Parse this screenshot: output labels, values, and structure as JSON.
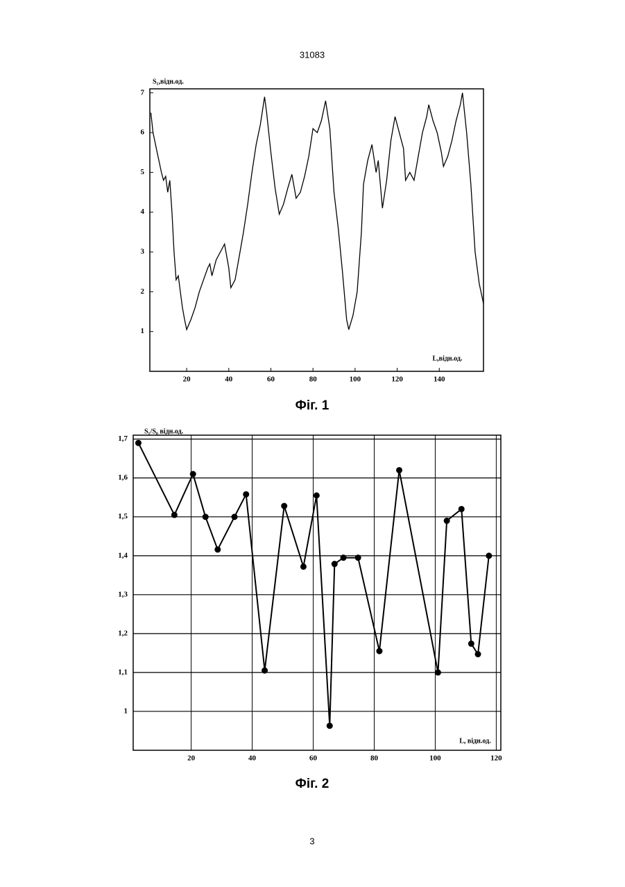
{
  "header": "31083",
  "page_number": "3",
  "chart_data": [
    {
      "type": "line",
      "title": "Фіг. 1",
      "ylabel": "S₁,відн.од.",
      "xlabel": "L,відн.од.",
      "color": "#000000",
      "grid": false,
      "markers": false,
      "xlim": [
        2.5,
        161
      ],
      "ylim": [
        0,
        7.1
      ],
      "xticks": [
        20,
        40,
        60,
        80,
        100,
        120,
        140
      ],
      "yticks": [
        1,
        2,
        3,
        4,
        5,
        6,
        7
      ],
      "x": [
        3,
        4,
        6,
        8,
        9,
        10,
        11,
        12,
        13,
        14,
        15,
        16,
        17,
        18,
        19,
        20,
        22,
        24,
        26,
        28,
        30,
        31,
        32,
        34,
        36,
        38,
        40,
        41,
        43,
        45,
        47,
        49,
        51,
        53,
        55,
        57,
        58,
        60,
        62,
        64,
        66,
        68,
        70,
        72,
        74,
        76,
        78,
        80,
        82,
        84,
        86,
        88,
        90,
        92,
        94,
        96,
        97,
        99,
        101,
        103,
        104,
        106,
        108,
        110,
        111,
        112,
        113,
        115,
        117,
        119,
        121,
        123,
        124,
        126,
        128,
        130,
        132,
        134,
        135,
        137,
        139,
        141,
        142,
        144,
        146,
        148,
        150,
        151,
        153,
        155,
        157,
        159,
        161
      ],
      "values": [
        6.5,
        6.0,
        5.5,
        5.0,
        4.8,
        4.9,
        4.5,
        4.8,
        4.0,
        3.0,
        2.3,
        2.4,
        2.0,
        1.6,
        1.3,
        1.05,
        1.3,
        1.6,
        2.0,
        2.3,
        2.6,
        2.7,
        2.4,
        2.8,
        3.0,
        3.2,
        2.6,
        2.1,
        2.3,
        2.9,
        3.5,
        4.2,
        5.0,
        5.7,
        6.2,
        6.9,
        6.5,
        5.5,
        4.6,
        3.95,
        4.2,
        4.6,
        4.95,
        4.35,
        4.5,
        4.9,
        5.4,
        6.1,
        6.0,
        6.3,
        6.8,
        6.1,
        4.5,
        3.6,
        2.5,
        1.3,
        1.05,
        1.4,
        2.0,
        3.5,
        4.7,
        5.3,
        5.7,
        5.0,
        5.3,
        4.7,
        4.1,
        4.8,
        5.8,
        6.4,
        6.0,
        5.6,
        4.8,
        5.0,
        4.8,
        5.4,
        6.0,
        6.4,
        6.7,
        6.3,
        6.0,
        5.5,
        5.15,
        5.4,
        5.8,
        6.3,
        6.7,
        7.0,
        6.0,
        4.7,
        3.0,
        2.2,
        1.7
      ]
    },
    {
      "type": "line",
      "title": "Фіг. 2",
      "ylabel": "S₁/S₀ відн.од.",
      "xlabel": "L, відн.од.",
      "color": "#000000",
      "grid": true,
      "markers": true,
      "xlim": [
        1,
        121.5
      ],
      "ylim": [
        0.9,
        1.71
      ],
      "xticks": [
        20,
        40,
        60,
        80,
        100,
        120
      ],
      "yticks": [
        {
          "value": 1.7,
          "label": "1,7"
        },
        {
          "value": 1.6,
          "label": "1,6"
        },
        {
          "value": 1.5,
          "label": "1,5"
        },
        {
          "value": 1.4,
          "label": "1,4"
        },
        {
          "value": 1.3,
          "label": "1,3"
        },
        {
          "value": 1.2,
          "label": "1,2"
        },
        {
          "value": 1.1,
          "label": "1,1"
        },
        1
      ],
      "x": [
        2.7,
        14.5,
        20.6,
        24.7,
        28.7,
        34.2,
        38,
        44.1,
        50.5,
        56.8,
        61.1,
        65.4,
        67,
        69.9,
        74.7,
        81.7,
        88.2,
        100.9,
        103.8,
        108.6,
        111.8,
        114,
        117.6
      ],
      "values": [
        1.69,
        1.505,
        1.61,
        1.5,
        1.416,
        1.5,
        1.558,
        1.105,
        1.528,
        1.372,
        1.555,
        0.963,
        1.379,
        1.395,
        1.395,
        1.155,
        1.62,
        1.1,
        1.49,
        1.52,
        1.174,
        1.147,
        1.4
      ]
    }
  ]
}
